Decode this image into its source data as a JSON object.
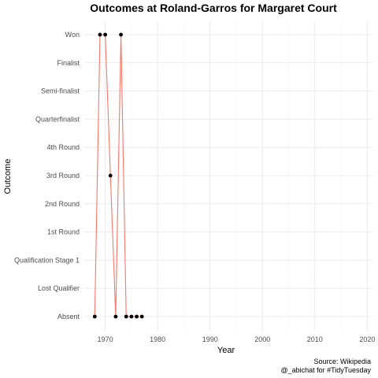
{
  "chart_data": {
    "type": "line",
    "title": "Outcomes at Roland-Garros for Margaret Court",
    "xlabel": "Year",
    "ylabel": "Outcome",
    "xlim": [
      1966,
      2021
    ],
    "x_ticks": [
      1970,
      1980,
      1990,
      2000,
      2010,
      2020
    ],
    "x_minor_ticks": [
      1975,
      1985,
      1995,
      2005,
      2015
    ],
    "y_categories": [
      "Absent",
      "Lost Qualifier",
      "Qualification Stage 1",
      "1st Round",
      "2nd Round",
      "3rd Round",
      "4th Round",
      "Quarterfinalist",
      "Semi-finalist",
      "Finalist",
      "Won"
    ],
    "grid": true,
    "line_color": "#f8766d",
    "point_color": "#000000",
    "points": [
      {
        "year": 1968,
        "outcome": "Absent"
      },
      {
        "year": 1969,
        "outcome": "Won"
      },
      {
        "year": 1970,
        "outcome": "Won"
      },
      {
        "year": 1971,
        "outcome": "3rd Round"
      },
      {
        "year": 1972,
        "outcome": "Absent"
      },
      {
        "year": 1973,
        "outcome": "Won"
      },
      {
        "year": 1974,
        "outcome": "Absent"
      },
      {
        "year": 1975,
        "outcome": "Absent"
      },
      {
        "year": 1976,
        "outcome": "Absent"
      },
      {
        "year": 1977,
        "outcome": "Absent"
      }
    ],
    "caption": [
      "Source: Wikipedia",
      "@_abichat for #TidyTuesday"
    ]
  }
}
